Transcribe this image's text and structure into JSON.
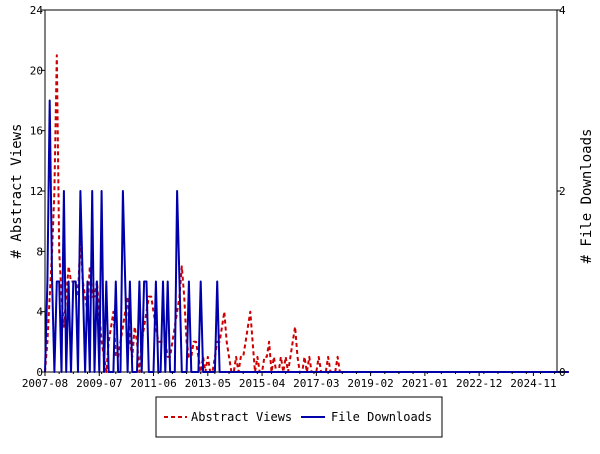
{
  "chart_data": {
    "type": "line",
    "title": "",
    "ylabel_left": "# Abstract Views",
    "ylabel_right": "# File Downloads",
    "xlabel": "",
    "x_tick_labels": [
      "2007-08",
      "2009-07",
      "2011-06",
      "2013-05",
      "2015-04",
      "2017-03",
      "2019-02",
      "2021-01",
      "2022-12",
      "2024-11"
    ],
    "x_range": [
      "2007-08",
      "2025-09"
    ],
    "ylim_left": [
      0,
      24
    ],
    "ylim_right": [
      0,
      4
    ],
    "yticks_left": [
      "0",
      "4",
      "8",
      "12",
      "16",
      "20",
      "24"
    ],
    "yticks_right": [
      "0",
      "2",
      "4"
    ],
    "grid": false,
    "legend_position": "bottom-center",
    "series": [
      {
        "name": "Abstract Views",
        "axis": "left",
        "color": "#cc0000",
        "dash": "dashed",
        "x_start": "2007-08",
        "values": [
          0,
          2,
          5,
          8,
          12,
          21,
          8,
          5,
          3,
          5,
          7,
          6,
          6,
          6,
          5,
          9,
          6,
          5,
          4,
          7,
          5,
          5,
          6,
          4,
          2,
          1,
          0,
          2,
          3,
          4,
          1,
          1,
          2,
          3,
          4,
          5,
          2,
          1,
          3,
          2,
          0,
          2,
          3,
          4,
          5,
          5,
          4,
          3,
          2,
          2,
          2,
          2,
          1,
          1,
          2,
          3,
          4,
          5,
          7,
          5,
          2,
          1,
          1,
          2,
          2,
          1,
          0,
          1,
          0,
          1,
          0,
          0,
          1,
          2,
          2,
          3,
          4,
          2,
          1,
          0,
          0,
          1,
          0,
          1,
          1,
          2,
          3,
          4,
          2,
          0,
          1,
          0,
          0,
          1,
          1,
          2,
          0,
          1,
          0,
          0,
          1,
          0,
          1,
          0,
          1,
          2,
          3,
          1,
          0,
          0,
          1,
          0,
          1,
          0,
          0,
          0,
          1,
          0,
          0,
          0,
          1,
          0,
          0,
          0,
          1,
          0,
          0,
          0,
          0,
          0,
          0,
          0,
          0,
          0,
          0,
          0,
          0,
          0,
          0,
          0,
          0,
          0,
          0,
          0,
          0,
          0,
          0,
          0,
          0,
          0,
          0,
          0,
          0,
          0,
          0,
          0,
          0,
          0,
          0,
          0,
          0,
          0,
          0,
          0,
          0,
          0,
          0,
          0,
          0,
          0,
          0,
          0,
          0,
          0,
          0,
          0,
          0,
          0,
          0,
          0,
          0,
          0,
          0,
          0,
          0,
          0,
          0,
          0,
          0,
          0,
          0,
          0,
          0,
          0,
          0,
          0,
          0,
          0,
          0,
          0,
          0,
          0,
          0,
          0,
          0,
          0,
          0,
          0,
          0,
          0,
          0,
          0,
          0,
          0,
          0,
          0,
          0,
          0,
          0,
          0,
          0,
          0,
          0
        ]
      },
      {
        "name": "File Downloads",
        "axis": "right",
        "color": "#0000aa",
        "dash": "solid",
        "x_start": "2007-08",
        "values": [
          0,
          1,
          3,
          1,
          0,
          1,
          1,
          0,
          2,
          0,
          1,
          0,
          1,
          1,
          0,
          2,
          1,
          0,
          1,
          0,
          2,
          0,
          1,
          0,
          2,
          0,
          1,
          0,
          0,
          0,
          1,
          0,
          0,
          2,
          1,
          0,
          1,
          0,
          0,
          0,
          1,
          0,
          1,
          1,
          0,
          0,
          0,
          1,
          0,
          0,
          1,
          0,
          1,
          0,
          0,
          0,
          2,
          1,
          0,
          0,
          0,
          1,
          0,
          0,
          0,
          0,
          1,
          0,
          0,
          0,
          0,
          0,
          0,
          1,
          0,
          0,
          0,
          0,
          0,
          0,
          0,
          0,
          0,
          0,
          0,
          0,
          0,
          0,
          0,
          0,
          0,
          0,
          0,
          0,
          0,
          0,
          0,
          0,
          0,
          0,
          0,
          0,
          0,
          0,
          0,
          0,
          0,
          0,
          0,
          0,
          0,
          0,
          0,
          0,
          0,
          0,
          0,
          0,
          0,
          0,
          0,
          0,
          0,
          0,
          0,
          0,
          0,
          0,
          0,
          0,
          0,
          0,
          0,
          0,
          0,
          0,
          0,
          0,
          0,
          0,
          0,
          0,
          0,
          0,
          0,
          0,
          0,
          0,
          0,
          0,
          0,
          0,
          0,
          0,
          0,
          0,
          0,
          0,
          0,
          0,
          0,
          0,
          0,
          0,
          0,
          0,
          0,
          0,
          0,
          0,
          0,
          0,
          0,
          0,
          0,
          0,
          0,
          0,
          0,
          0,
          0,
          0,
          0,
          0,
          0,
          0,
          0,
          0,
          0,
          0,
          0,
          0,
          0,
          0,
          0,
          0,
          0,
          0,
          0,
          0,
          0,
          0,
          0,
          0,
          0,
          0,
          0,
          0,
          0,
          0,
          0,
          0,
          0,
          0,
          0,
          0,
          0,
          0,
          0,
          0,
          0,
          0,
          0
        ]
      }
    ]
  }
}
